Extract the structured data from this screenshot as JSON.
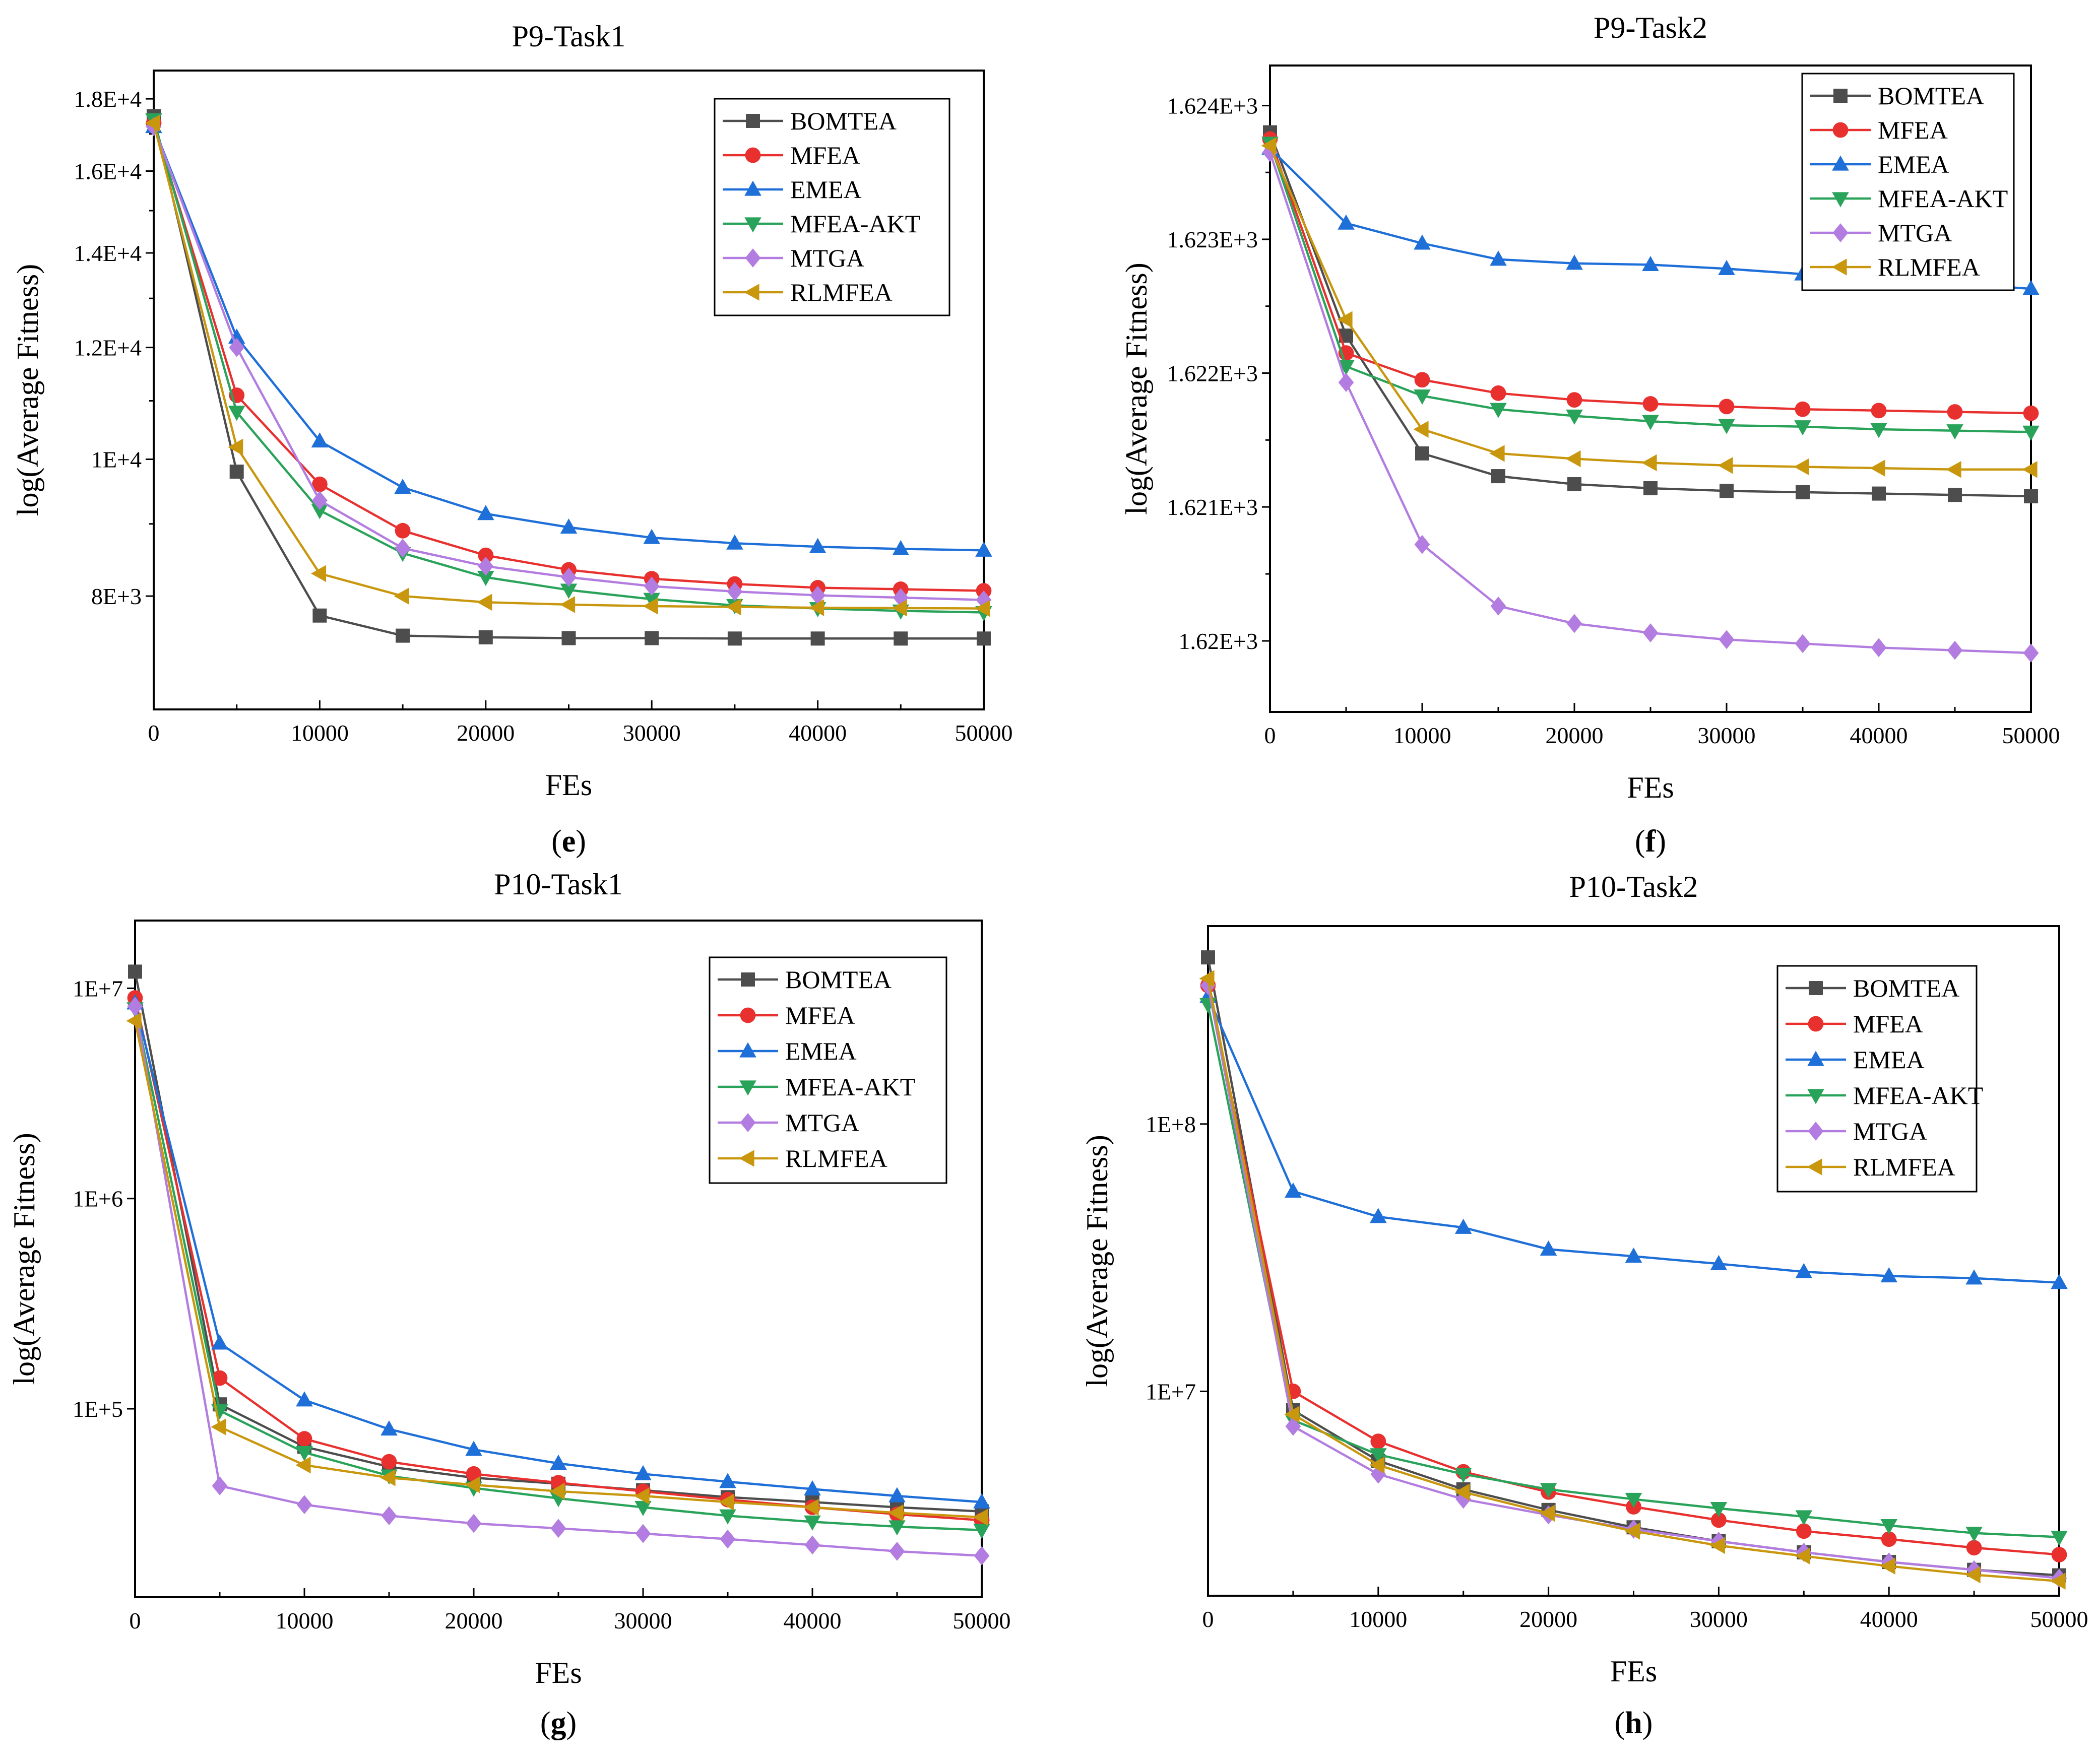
{
  "series_styles": [
    {
      "name": "BOMTEA",
      "color": "#4d4d4d",
      "marker": "square"
    },
    {
      "name": "MFEA",
      "color": "#e8302e",
      "marker": "circle"
    },
    {
      "name": "EMEA",
      "color": "#1f6fd9",
      "marker": "triangle-up"
    },
    {
      "name": "MFEA-AKT",
      "color": "#2aa35a",
      "marker": "triangle-down"
    },
    {
      "name": "MTGA",
      "color": "#b27ce0",
      "marker": "diamond"
    },
    {
      "name": "RLMFEA",
      "color": "#c9970e",
      "marker": "triangle-left"
    }
  ],
  "chart_data": [
    {
      "type": "line",
      "panel_label": "e",
      "title": "P9-Task1",
      "xlabel": "FEs",
      "ylabel": "log(Average Fitness)",
      "xlim": [
        0,
        50000
      ],
      "xticks": [
        0,
        10000,
        20000,
        30000,
        40000,
        50000
      ],
      "xtick_labels": [
        "0",
        "10000",
        "20000",
        "30000",
        "40000",
        "50000"
      ],
      "yscale": "log",
      "ylim": [
        6650,
        18850
      ],
      "yticks": [
        8000,
        10000,
        12000,
        14000,
        16000,
        18000
      ],
      "ytick_labels": [
        "8E+3",
        "1E+4",
        "1.2E+4",
        "1.4E+4",
        "1.6E+4",
        "1.8E+4"
      ],
      "legend_position": "top-right",
      "x": [
        0,
        5000,
        10000,
        15000,
        20000,
        25000,
        30000,
        35000,
        40000,
        45000,
        50000
      ],
      "series": [
        {
          "name": "BOMTEA",
          "values": [
            17500,
            9800,
            7750,
            7500,
            7480,
            7470,
            7470,
            7465,
            7465,
            7465,
            7465
          ]
        },
        {
          "name": "MFEA",
          "values": [
            17300,
            11100,
            9600,
            8900,
            8550,
            8350,
            8230,
            8160,
            8110,
            8090,
            8070
          ]
        },
        {
          "name": "EMEA",
          "values": [
            17200,
            12200,
            10300,
            9550,
            9150,
            8950,
            8800,
            8720,
            8670,
            8640,
            8620
          ]
        },
        {
          "name": "MFEA-AKT",
          "values": [
            17400,
            10800,
            9200,
            8580,
            8250,
            8080,
            7960,
            7880,
            7840,
            7810,
            7790
          ]
        },
        {
          "name": "MTGA",
          "values": [
            17200,
            12000,
            9350,
            8650,
            8400,
            8250,
            8130,
            8060,
            8010,
            7980,
            7950
          ]
        },
        {
          "name": "RLMFEA",
          "values": [
            17300,
            10200,
            8300,
            8000,
            7920,
            7890,
            7870,
            7860,
            7850,
            7845,
            7840
          ]
        }
      ]
    },
    {
      "type": "line",
      "panel_label": "f",
      "title": "P9-Task2",
      "xlabel": "FEs",
      "ylabel": "log(Average Fitness)",
      "xlim": [
        0,
        50000
      ],
      "xticks": [
        0,
        10000,
        20000,
        30000,
        40000,
        50000
      ],
      "xtick_labels": [
        "0",
        "10000",
        "20000",
        "30000",
        "40000",
        "50000"
      ],
      "yscale": "log",
      "ylim": [
        1619.47,
        1624.3
      ],
      "yticks": [
        1620,
        1621,
        1622,
        1623,
        1624
      ],
      "ytick_labels": [
        "1.62E+3",
        "1.621E+3",
        "1.622E+3",
        "1.623E+3",
        "1.624E+3"
      ],
      "legend_position": "top-right",
      "x": [
        0,
        5000,
        10000,
        15000,
        20000,
        25000,
        30000,
        35000,
        40000,
        45000,
        50000
      ],
      "series": [
        {
          "name": "BOMTEA",
          "values": [
            1623.8,
            1622.28,
            1621.4,
            1621.23,
            1621.17,
            1621.14,
            1621.12,
            1621.11,
            1621.1,
            1621.09,
            1621.08
          ]
        },
        {
          "name": "MFEA",
          "values": [
            1623.75,
            1622.15,
            1621.95,
            1621.85,
            1621.8,
            1621.77,
            1621.75,
            1621.73,
            1621.72,
            1621.71,
            1621.7
          ]
        },
        {
          "name": "EMEA",
          "values": [
            1623.68,
            1623.12,
            1622.97,
            1622.85,
            1622.82,
            1622.81,
            1622.78,
            1622.74,
            1622.68,
            1622.67,
            1622.63
          ]
        },
        {
          "name": "MFEA-AKT",
          "values": [
            1623.72,
            1622.05,
            1621.83,
            1621.73,
            1621.68,
            1621.64,
            1621.61,
            1621.6,
            1621.58,
            1621.57,
            1621.56
          ]
        },
        {
          "name": "MTGA",
          "values": [
            1623.65,
            1621.93,
            1620.72,
            1620.26,
            1620.13,
            1620.06,
            1620.01,
            1619.98,
            1619.95,
            1619.93,
            1619.91
          ]
        },
        {
          "name": "RLMFEA",
          "values": [
            1623.7,
            1622.4,
            1621.58,
            1621.4,
            1621.36,
            1621.33,
            1621.31,
            1621.3,
            1621.29,
            1621.28,
            1621.28
          ]
        }
      ]
    },
    {
      "type": "line",
      "panel_label": "g",
      "title": "P10-Task1",
      "xlabel": "FEs",
      "ylabel": "log(Average Fitness)",
      "xlim": [
        0,
        50000
      ],
      "xticks": [
        0,
        10000,
        20000,
        30000,
        40000,
        50000
      ],
      "xtick_labels": [
        "0",
        "10000",
        "20000",
        "30000",
        "40000",
        "50000"
      ],
      "yscale": "log",
      "ylim": [
        12700,
        21000000
      ],
      "yticks": [
        100000,
        1000000,
        10000000
      ],
      "ytick_labels": [
        "1E+5",
        "1E+6",
        "1E+7"
      ],
      "legend_position": "top-right",
      "x": [
        0,
        5000,
        10000,
        15000,
        20000,
        25000,
        30000,
        35000,
        40000,
        45000,
        50000
      ],
      "series": [
        {
          "name": "BOMTEA",
          "values": [
            12000000,
            105000,
            66000,
            53000,
            47000,
            44000,
            41000,
            38000,
            36000,
            34000,
            32500
          ]
        },
        {
          "name": "MFEA",
          "values": [
            9000000,
            140000,
            72000,
            56000,
            49000,
            44500,
            40500,
            37000,
            34000,
            31500,
            29500
          ]
        },
        {
          "name": "EMEA",
          "values": [
            8500000,
            205000,
            110000,
            80000,
            64000,
            55000,
            49000,
            45000,
            41500,
            38500,
            36000
          ]
        },
        {
          "name": "MFEA-AKT",
          "values": [
            8000000,
            98000,
            62000,
            48000,
            42000,
            37500,
            34000,
            31000,
            29000,
            27500,
            26500
          ]
        },
        {
          "name": "MTGA",
          "values": [
            8200000,
            43000,
            35000,
            31000,
            28500,
            27000,
            25500,
            24000,
            22500,
            21000,
            20000
          ]
        },
        {
          "name": "RLMFEA",
          "values": [
            7000000,
            82000,
            54000,
            47000,
            43500,
            40500,
            38500,
            36000,
            34000,
            32000,
            30500
          ]
        }
      ]
    },
    {
      "type": "line",
      "panel_label": "h",
      "title": "P10-Task2",
      "xlabel": "FEs",
      "ylabel": "log(Average Fitness)",
      "xlim": [
        0,
        50000
      ],
      "xticks": [
        0,
        10000,
        20000,
        30000,
        40000,
        50000
      ],
      "xtick_labels": [
        "0",
        "10000",
        "20000",
        "30000",
        "40000",
        "50000"
      ],
      "yscale": "log",
      "ylim": [
        1720000,
        550000000
      ],
      "yticks": [
        10000000,
        100000000
      ],
      "ytick_labels": [
        "1E+7",
        "1E+8"
      ],
      "legend_position": "top-right",
      "x": [
        0,
        5000,
        10000,
        15000,
        20000,
        25000,
        30000,
        35000,
        40000,
        45000,
        50000
      ],
      "series": [
        {
          "name": "BOMTEA",
          "values": [
            420000000,
            8500000,
            5500000,
            4300000,
            3600000,
            3100000,
            2750000,
            2500000,
            2300000,
            2150000,
            2050000
          ]
        },
        {
          "name": "MFEA",
          "values": [
            330000000,
            10000000,
            6500000,
            5000000,
            4200000,
            3700000,
            3300000,
            3000000,
            2800000,
            2600000,
            2450000
          ]
        },
        {
          "name": "EMEA",
          "values": [
            300000000,
            56000000,
            45000000,
            41000000,
            34000000,
            32000000,
            30000000,
            28000000,
            27000000,
            26500000,
            25500000
          ]
        },
        {
          "name": "MFEA-AKT",
          "values": [
            280000000,
            7800000,
            5800000,
            4900000,
            4300000,
            3950000,
            3650000,
            3400000,
            3150000,
            2950000,
            2850000
          ]
        },
        {
          "name": "MTGA",
          "values": [
            330000000,
            7400000,
            4900000,
            3950000,
            3450000,
            3050000,
            2750000,
            2500000,
            2300000,
            2150000,
            2000000
          ]
        },
        {
          "name": "RLMFEA",
          "values": [
            350000000,
            8200000,
            5300000,
            4200000,
            3500000,
            3000000,
            2650000,
            2420000,
            2220000,
            2060000,
            1950000
          ]
        }
      ]
    }
  ]
}
